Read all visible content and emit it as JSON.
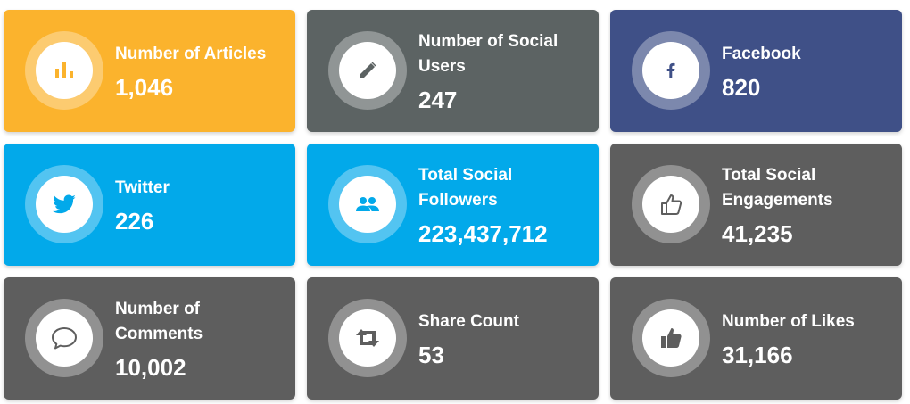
{
  "cards": [
    {
      "label": "Number of Articles",
      "value": "1,046",
      "icon": "bar-chart-icon",
      "color": "#FBB32D"
    },
    {
      "label": "Number of Social Users",
      "value": "247",
      "icon": "pencil-icon",
      "color": "#5C6363"
    },
    {
      "label": "Facebook",
      "value": "820",
      "icon": "facebook-icon",
      "color": "#3F5087"
    },
    {
      "label": "Twitter",
      "value": "226",
      "icon": "twitter-icon",
      "color": "#02A9EA"
    },
    {
      "label": "Total Social Followers",
      "value": "223,437,712",
      "icon": "people-icon",
      "color": "#02A9EA"
    },
    {
      "label": "Total Social Engagements",
      "value": "41,235",
      "icon": "thumbs-up-outline-icon",
      "color": "#5E5E5E"
    },
    {
      "label": "Number of Comments",
      "value": "10,002",
      "icon": "comment-icon",
      "color": "#5E5E5E"
    },
    {
      "label": "Share Count",
      "value": "53",
      "icon": "retweet-icon",
      "color": "#5E5E5E"
    },
    {
      "label": "Number of Likes",
      "value": "31,166",
      "icon": "thumbs-up-icon",
      "color": "#5E5E5E"
    }
  ]
}
